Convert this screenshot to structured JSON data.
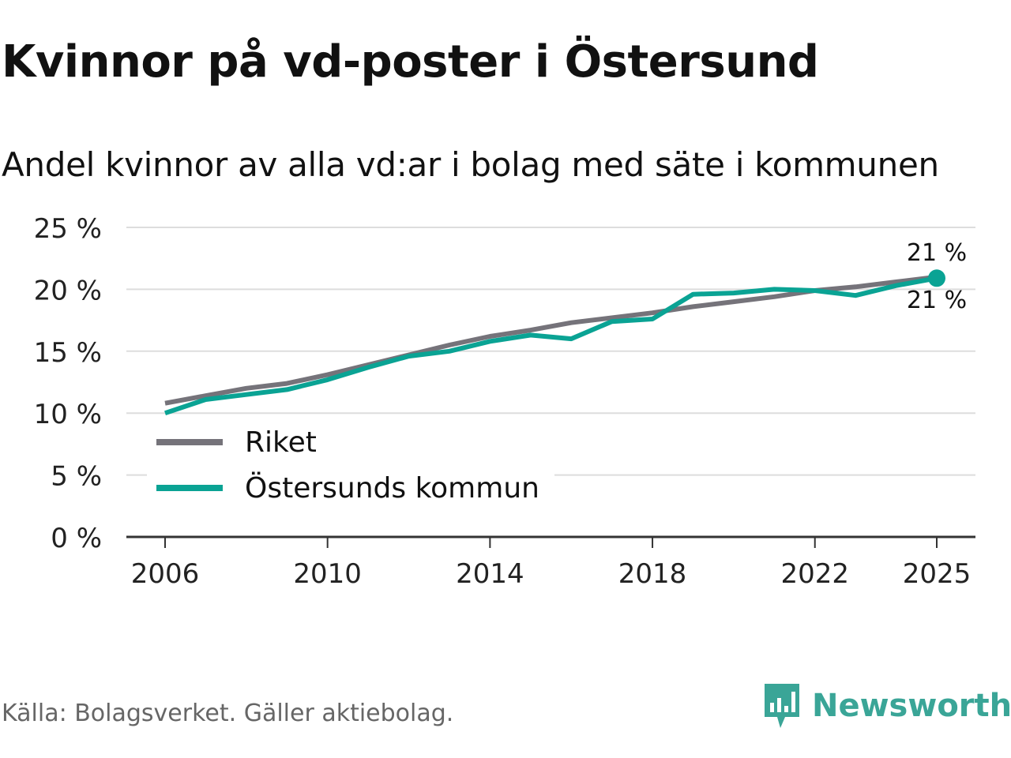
{
  "title": "Kvinnor på vd-poster i Östersund",
  "subtitle": "Andel kvinnor av alla vd:ar i bolag med säte i kommunen",
  "source": "Källa: Bolagsverket. Gäller aktiebolag.",
  "brand": {
    "name": "Newsworthy",
    "icon": "newsworthy-logo-icon"
  },
  "colors": {
    "riket": "#75737a",
    "kommun": "#0aa394",
    "grid": "#dddddd",
    "axis": "#333333"
  },
  "chart_data": {
    "type": "line",
    "title": "Kvinnor på vd-poster i Östersund",
    "xlabel": "",
    "ylabel": "",
    "ylim": [
      0,
      25
    ],
    "yticks": [
      0,
      5,
      10,
      15,
      20,
      25
    ],
    "ytick_labels": [
      "0 %",
      "5 %",
      "10 %",
      "15 %",
      "20 %",
      "25 %"
    ],
    "xticks": [
      2006,
      2010,
      2014,
      2018,
      2022,
      2025
    ],
    "xtick_labels": [
      "2006",
      "2010",
      "2014",
      "2018",
      "2022",
      "2025"
    ],
    "xlim": [
      2006,
      2025
    ],
    "grid": true,
    "legend_position": "bottom-left",
    "x": [
      2006,
      2007,
      2008,
      2009,
      2010,
      2011,
      2012,
      2013,
      2014,
      2015,
      2016,
      2017,
      2018,
      2019,
      2020,
      2021,
      2022,
      2023,
      2024,
      2025
    ],
    "series": [
      {
        "name": "Riket",
        "color_key": "riket",
        "values": [
          10.8,
          11.4,
          12.0,
          12.4,
          13.1,
          13.9,
          14.7,
          15.5,
          16.2,
          16.7,
          17.3,
          17.7,
          18.1,
          18.6,
          19.0,
          19.4,
          19.9,
          20.2,
          20.6,
          21.0
        ],
        "end_label": "21 %"
      },
      {
        "name": "Östersunds kommun",
        "color_key": "kommun",
        "values": [
          10.0,
          11.1,
          11.5,
          11.9,
          12.7,
          13.7,
          14.6,
          15.0,
          15.8,
          16.3,
          16.0,
          17.4,
          17.6,
          19.6,
          19.7,
          20.0,
          19.9,
          19.5,
          20.3,
          20.9
        ],
        "end_label": "21 %"
      }
    ]
  }
}
